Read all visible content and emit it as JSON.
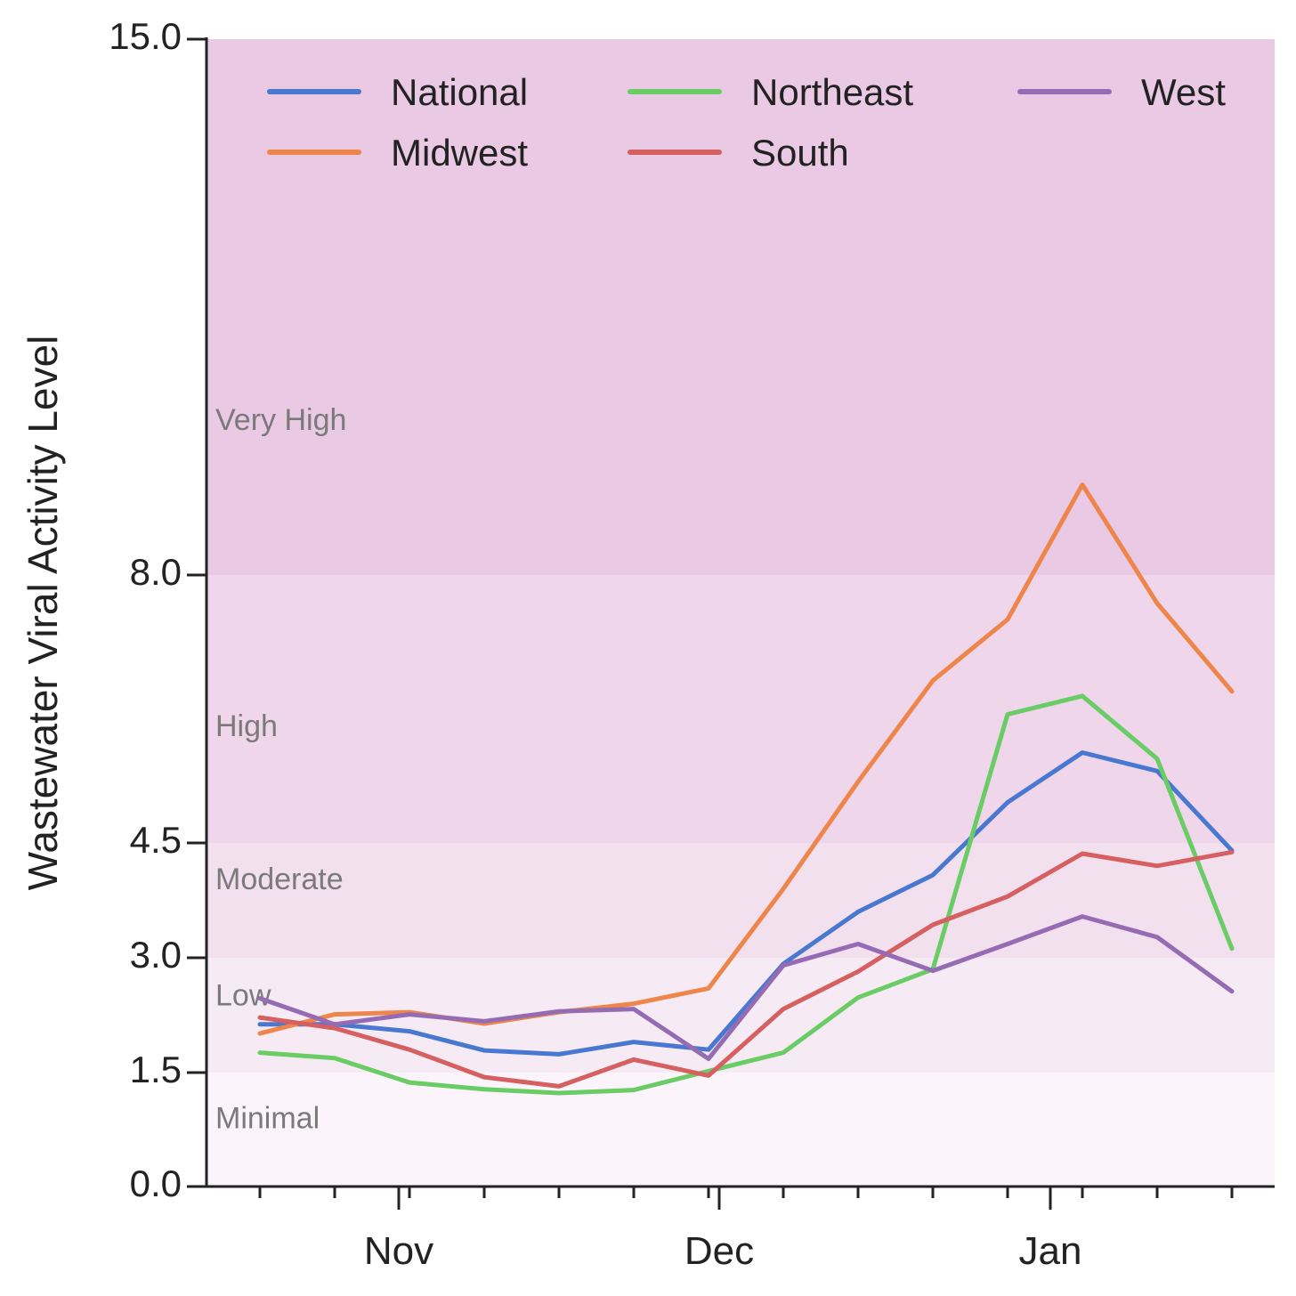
{
  "chart_data": {
    "type": "line",
    "title": "",
    "xlabel": "",
    "ylabel": "Wastewater Viral Activity Level",
    "y_ticks": [
      0.0,
      1.5,
      3.0,
      4.5,
      8.0,
      15.0
    ],
    "y_tick_labels": [
      "0.0",
      "1.5",
      "3.0",
      "4.5",
      "8.0",
      "15.0"
    ],
    "ylim": [
      0,
      15
    ],
    "x_dates": [
      "2024-10-19",
      "2024-10-26",
      "2024-11-02",
      "2024-11-09",
      "2024-11-16",
      "2024-11-23",
      "2024-11-30",
      "2024-12-07",
      "2024-12-14",
      "2024-12-21",
      "2024-12-28",
      "2025-01-04",
      "2025-01-11",
      "2025-01-18"
    ],
    "x_major_ticks": [
      {
        "date": "2024-11-01",
        "label": "Nov"
      },
      {
        "date": "2024-12-01",
        "label": "Dec"
      },
      {
        "date": "2025-01-01",
        "label": "Jan"
      }
    ],
    "xlim": [
      "2024-10-14",
      "2025-01-22"
    ],
    "bands": [
      {
        "label": "Minimal",
        "from": 0.0,
        "to": 1.5,
        "color": "#fbf4fa"
      },
      {
        "label": "Low",
        "from": 1.5,
        "to": 3.0,
        "color": "#f6ebf5"
      },
      {
        "label": "Moderate",
        "from": 3.0,
        "to": 4.5,
        "color": "#f2e0ef"
      },
      {
        "label": "High",
        "from": 4.5,
        "to": 8.0,
        "color": "#efd6ea"
      },
      {
        "label": "Very High",
        "from": 8.0,
        "to": 15.0,
        "color": "#e9c9e3"
      }
    ],
    "band_label_y": {
      "Very High": 10.0,
      "High": 6.0,
      "Moderate": 4.0,
      "Low": 2.48,
      "Minimal": 0.87
    },
    "legend_position": "top",
    "series": [
      {
        "name": "National",
        "color": "#4878d0",
        "values": [
          2.13,
          2.13,
          2.04,
          1.79,
          1.74,
          1.9,
          1.8,
          2.92,
          3.6,
          4.08,
          5.03,
          5.68,
          5.44,
          4.4
        ]
      },
      {
        "name": "Midwest",
        "color": "#ee854a",
        "values": [
          2.01,
          2.26,
          2.29,
          2.14,
          2.29,
          2.4,
          2.6,
          3.9,
          5.3,
          6.62,
          7.42,
          9.18,
          7.63,
          6.48
        ]
      },
      {
        "name": "Northeast",
        "color": "#6acc64",
        "values": [
          1.76,
          1.69,
          1.37,
          1.28,
          1.23,
          1.27,
          1.52,
          1.76,
          2.48,
          2.85,
          6.18,
          6.42,
          5.6,
          3.12
        ]
      },
      {
        "name": "South",
        "color": "#d65f5f",
        "values": [
          2.22,
          2.08,
          1.8,
          1.44,
          1.32,
          1.67,
          1.46,
          2.33,
          2.82,
          3.43,
          3.8,
          4.36,
          4.2,
          4.38
        ]
      },
      {
        "name": "West",
        "color": "#956cb4",
        "values": [
          2.47,
          2.13,
          2.26,
          2.17,
          2.3,
          2.33,
          1.68,
          2.9,
          3.18,
          2.83,
          3.18,
          3.54,
          3.27,
          2.56
        ]
      }
    ]
  }
}
